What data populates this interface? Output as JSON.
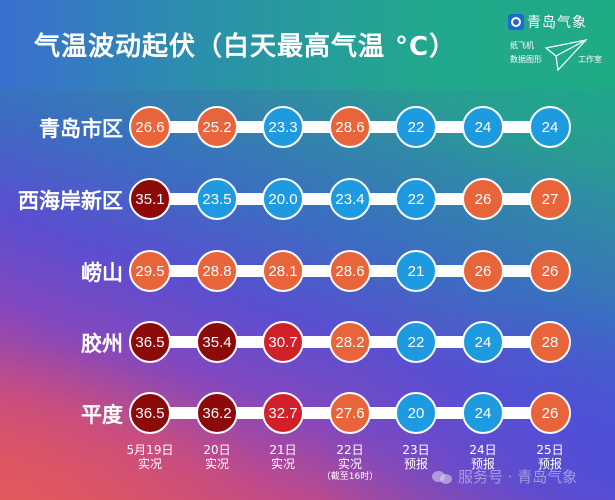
{
  "header": {
    "title": "气温波动起伏（白天最高气温 °C）",
    "brand_name": "青岛气象",
    "brand_logo_icon": "qingdao-weather-logo-icon",
    "studio_line1": "纸飞机",
    "studio_line2": "数据图形",
    "studio_line3": "工作室",
    "studio_icon": "paper-plane-icon"
  },
  "colors": {
    "cool": "#1e9be0",
    "warm": "#e8643a",
    "hot": "#d2202a",
    "very_hot": "#8c0a0a",
    "track": "#ffffff"
  },
  "rows": [
    {
      "label": "青岛市区"
    },
    {
      "label": "西海岸新区"
    },
    {
      "label": "崂山"
    },
    {
      "label": "胶州"
    },
    {
      "label": "平度"
    }
  ],
  "columns": [
    {
      "date": "5月19日",
      "type": "实况",
      "note": ""
    },
    {
      "date": "20日",
      "type": "实况",
      "note": ""
    },
    {
      "date": "21日",
      "type": "实况",
      "note": ""
    },
    {
      "date": "22日",
      "type": "实况",
      "note": "（截至16时）"
    },
    {
      "date": "23日",
      "type": "预报",
      "note": ""
    },
    {
      "date": "24日",
      "type": "预报",
      "note": ""
    },
    {
      "date": "25日",
      "type": "预报",
      "note": ""
    }
  ],
  "watermark": "服务号 · 青岛气象",
  "chart_data": {
    "type": "table",
    "title": "气温波动起伏（白天最高气温 °C）",
    "xlabel": "",
    "ylabel": "",
    "categories": [
      "5月19日 实况",
      "20日 实况",
      "21日 实况",
      "22日 实况（截至16时）",
      "23日 预报",
      "24日 预报",
      "25日 预报"
    ],
    "series": [
      {
        "name": "青岛市区",
        "values": [
          "26.6",
          "25.2",
          "23.3",
          "28.6",
          "22",
          "24",
          "24"
        ],
        "levels": [
          "warm",
          "warm",
          "cool",
          "warm",
          "cool",
          "cool",
          "cool"
        ]
      },
      {
        "name": "西海岸新区",
        "values": [
          "35.1",
          "23.5",
          "20.0",
          "23.4",
          "22",
          "26",
          "27"
        ],
        "levels": [
          "very_hot",
          "cool",
          "cool",
          "cool",
          "cool",
          "warm",
          "warm"
        ]
      },
      {
        "name": "崂山",
        "values": [
          "29.5",
          "28.8",
          "28.1",
          "28.6",
          "21",
          "26",
          "26"
        ],
        "levels": [
          "warm",
          "warm",
          "warm",
          "warm",
          "cool",
          "warm",
          "warm"
        ]
      },
      {
        "name": "胶州",
        "values": [
          "36.5",
          "35.4",
          "30.7",
          "28.2",
          "22",
          "24",
          "28"
        ],
        "levels": [
          "very_hot",
          "very_hot",
          "hot",
          "warm",
          "cool",
          "cool",
          "warm"
        ]
      },
      {
        "name": "平度",
        "values": [
          "36.5",
          "36.2",
          "32.7",
          "27.6",
          "20",
          "24",
          "26"
        ],
        "levels": [
          "very_hot",
          "very_hot",
          "hot",
          "warm",
          "cool",
          "cool",
          "warm"
        ]
      }
    ],
    "legend": "circle color: blue <25°C, orange 25–30°C, red 30–35°C, dark red ≥35°C",
    "grid": false
  }
}
